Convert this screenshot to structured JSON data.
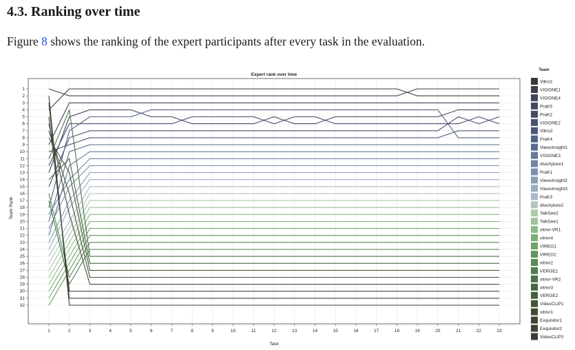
{
  "section": {
    "heading": "4.3.  Ranking over time",
    "paragraph_before": "Figure ",
    "figure_ref": "8",
    "paragraph_after": " shows the ranking of the expert participants after every task in the evaluation."
  },
  "chart_data": {
    "type": "line",
    "title": "Expert rank over time",
    "xlabel": "Task",
    "ylabel": "Team Rank",
    "x": [
      1,
      2,
      3,
      4,
      5,
      6,
      7,
      8,
      9,
      10,
      11,
      12,
      13,
      14,
      15,
      16,
      17,
      18,
      19,
      20,
      21,
      22,
      23
    ],
    "ylim": [
      1,
      32
    ],
    "y_inverted": true,
    "y_ticks": [
      1,
      2,
      3,
      4,
      5,
      6,
      7,
      8,
      9,
      10,
      11,
      12,
      13,
      14,
      15,
      16,
      17,
      18,
      19,
      20,
      21,
      22,
      23,
      24,
      25,
      26,
      27,
      28,
      29,
      30,
      31,
      32
    ],
    "grid": true,
    "legend": {
      "title": "Team",
      "placement": "right"
    },
    "series": [
      {
        "name": "Vibro1",
        "color": "#3a3a3a",
        "values": [
          4,
          1,
          1,
          1,
          1,
          1,
          1,
          1,
          1,
          1,
          1,
          1,
          1,
          1,
          1,
          1,
          1,
          1,
          2,
          2,
          2,
          2,
          2
        ]
      },
      {
        "name": "VISIONE1",
        "color": "#3d3f4f",
        "values": [
          1,
          2,
          2,
          2,
          2,
          2,
          2,
          2,
          2,
          2,
          2,
          2,
          2,
          2,
          2,
          2,
          2,
          2,
          1,
          1,
          1,
          1,
          1
        ]
      },
      {
        "name": "VISIONE4",
        "color": "#3f4356",
        "values": [
          9,
          3,
          3,
          3,
          3,
          3,
          3,
          3,
          3,
          3,
          3,
          3,
          3,
          3,
          3,
          3,
          3,
          3,
          3,
          3,
          3,
          3,
          3
        ]
      },
      {
        "name": "PraK5",
        "color": "#43475e",
        "values": [
          13,
          5,
          4,
          4,
          4,
          5,
          5,
          6,
          6,
          6,
          6,
          5,
          6,
          6,
          5,
          5,
          5,
          5,
          5,
          5,
          4,
          4,
          4
        ]
      },
      {
        "name": "PraK2",
        "color": "#454b66",
        "values": [
          12,
          6,
          6,
          6,
          6,
          6,
          6,
          5,
          5,
          5,
          5,
          6,
          5,
          5,
          6,
          6,
          6,
          6,
          6,
          6,
          6,
          5,
          6
        ]
      },
      {
        "name": "VISIONE2",
        "color": "#48516f",
        "values": [
          15,
          8,
          7,
          7,
          7,
          7,
          7,
          7,
          7,
          7,
          7,
          7,
          7,
          7,
          7,
          7,
          7,
          7,
          7,
          7,
          5,
          6,
          5
        ]
      },
      {
        "name": "Vibro2",
        "color": "#4c5878",
        "values": [
          10,
          9,
          8,
          8,
          8,
          8,
          8,
          8,
          8,
          8,
          8,
          8,
          8,
          8,
          8,
          8,
          8,
          8,
          8,
          8,
          7,
          7,
          7
        ]
      },
      {
        "name": "PraK4",
        "color": "#516182",
        "values": [
          18,
          7,
          5,
          5,
          5,
          4,
          4,
          4,
          4,
          4,
          4,
          4,
          4,
          4,
          4,
          4,
          4,
          4,
          4,
          4,
          8,
          8,
          8
        ]
      },
      {
        "name": "ViewsInsight1",
        "color": "#5a6c8d",
        "values": [
          20,
          10,
          9,
          9,
          9,
          9,
          9,
          9,
          9,
          9,
          9,
          9,
          9,
          9,
          9,
          9,
          9,
          9,
          9,
          9,
          9,
          9,
          9
        ]
      },
      {
        "name": "VISIONE3",
        "color": "#647898",
        "values": [
          22,
          12,
          10,
          10,
          10,
          10,
          10,
          10,
          10,
          10,
          10,
          10,
          10,
          10,
          10,
          10,
          10,
          10,
          10,
          10,
          10,
          10,
          10
        ]
      },
      {
        "name": "diveXplore1",
        "color": "#6f84a2",
        "values": [
          19,
          14,
          11,
          11,
          11,
          11,
          11,
          11,
          11,
          11,
          11,
          11,
          11,
          11,
          11,
          11,
          11,
          11,
          11,
          11,
          11,
          11,
          11
        ]
      },
      {
        "name": "PraK1",
        "color": "#7d91ad",
        "values": [
          21,
          15,
          12,
          12,
          12,
          12,
          12,
          12,
          12,
          12,
          12,
          12,
          12,
          12,
          12,
          12,
          12,
          12,
          12,
          12,
          12,
          12,
          12
        ]
      },
      {
        "name": "ViewsInsight2",
        "color": "#8c9eb7",
        "values": [
          23,
          17,
          13,
          13,
          13,
          13,
          13,
          13,
          13,
          13,
          13,
          13,
          13,
          13,
          13,
          13,
          13,
          13,
          13,
          13,
          13,
          13,
          13
        ]
      },
      {
        "name": "ViewsInsight3",
        "color": "#9bacc1",
        "values": [
          24,
          18,
          14,
          14,
          14,
          14,
          14,
          14,
          14,
          14,
          14,
          14,
          14,
          14,
          14,
          14,
          14,
          14,
          14,
          14,
          14,
          14,
          14
        ]
      },
      {
        "name": "PraK3",
        "color": "#a9b9c9",
        "values": [
          25,
          20,
          15,
          15,
          15,
          15,
          15,
          15,
          15,
          15,
          15,
          15,
          15,
          15,
          15,
          15,
          15,
          15,
          15,
          15,
          15,
          15,
          15
        ]
      },
      {
        "name": "diveXplore2",
        "color": "#b3c6c0",
        "values": [
          26,
          21,
          16,
          16,
          16,
          16,
          16,
          16,
          16,
          16,
          16,
          16,
          16,
          16,
          16,
          16,
          16,
          16,
          16,
          16,
          16,
          16,
          16
        ]
      },
      {
        "name": "TalkSee2",
        "color": "#aacaa8",
        "values": [
          27,
          22,
          17,
          17,
          17,
          17,
          17,
          17,
          17,
          17,
          17,
          17,
          17,
          17,
          17,
          17,
          17,
          17,
          17,
          17,
          17,
          17,
          17
        ]
      },
      {
        "name": "TalkSee1",
        "color": "#9dc39a",
        "values": [
          28,
          23,
          18,
          18,
          18,
          18,
          18,
          18,
          18,
          18,
          18,
          18,
          18,
          18,
          18,
          18,
          18,
          18,
          18,
          18,
          18,
          18,
          18
        ]
      },
      {
        "name": "vitrivr-VR1",
        "color": "#8dba89",
        "values": [
          29,
          24,
          19,
          19,
          19,
          19,
          19,
          19,
          19,
          19,
          19,
          19,
          19,
          19,
          19,
          19,
          19,
          19,
          19,
          19,
          19,
          19,
          19
        ]
      },
      {
        "name": "vitrivr4",
        "color": "#7cae79",
        "values": [
          30,
          25,
          20,
          20,
          20,
          20,
          20,
          20,
          20,
          20,
          20,
          20,
          20,
          20,
          20,
          20,
          20,
          20,
          20,
          20,
          20,
          20,
          20
        ]
      },
      {
        "name": "VIREO1",
        "color": "#6ea36c",
        "values": [
          31,
          26,
          21,
          21,
          21,
          21,
          21,
          21,
          21,
          21,
          21,
          21,
          21,
          21,
          21,
          21,
          21,
          21,
          21,
          21,
          21,
          21,
          21
        ]
      },
      {
        "name": "VIREO2",
        "color": "#629660",
        "values": [
          32,
          27,
          22,
          22,
          22,
          22,
          22,
          22,
          22,
          22,
          22,
          22,
          22,
          22,
          22,
          22,
          22,
          22,
          22,
          22,
          22,
          22,
          22
        ]
      },
      {
        "name": "vitrivr2",
        "color": "#588a55",
        "values": [
          16,
          28,
          23,
          23,
          23,
          23,
          23,
          23,
          23,
          23,
          23,
          23,
          23,
          23,
          23,
          23,
          23,
          23,
          23,
          23,
          23,
          23,
          23
        ]
      },
      {
        "name": "VERGE1",
        "color": "#507d4c",
        "values": [
          17,
          29,
          24,
          24,
          24,
          24,
          24,
          24,
          24,
          24,
          24,
          24,
          24,
          24,
          24,
          24,
          24,
          24,
          24,
          24,
          24,
          24,
          24
        ]
      },
      {
        "name": "vitrivr-VR2",
        "color": "#4a7145",
        "values": [
          11,
          4,
          25,
          25,
          25,
          25,
          25,
          25,
          25,
          25,
          25,
          25,
          25,
          25,
          25,
          25,
          25,
          25,
          25,
          25,
          25,
          25,
          25
        ]
      },
      {
        "name": "vitrivr3",
        "color": "#46663f",
        "values": [
          14,
          11,
          26,
          26,
          26,
          26,
          26,
          26,
          26,
          26,
          26,
          26,
          26,
          26,
          26,
          26,
          26,
          26,
          26,
          26,
          26,
          26,
          26
        ]
      },
      {
        "name": "VERGE2",
        "color": "#445c3a",
        "values": [
          8,
          13,
          27,
          27,
          27,
          27,
          27,
          27,
          27,
          27,
          27,
          27,
          27,
          27,
          27,
          27,
          27,
          27,
          27,
          27,
          27,
          27,
          27
        ]
      },
      {
        "name": "VideoCLIP1",
        "color": "#435337",
        "values": [
          7,
          16,
          28,
          28,
          28,
          28,
          28,
          28,
          28,
          28,
          28,
          28,
          28,
          28,
          28,
          28,
          28,
          28,
          28,
          28,
          28,
          28,
          28
        ]
      },
      {
        "name": "vitrivr1",
        "color": "#424b35",
        "values": [
          6,
          19,
          29,
          29,
          29,
          29,
          29,
          29,
          29,
          29,
          29,
          29,
          29,
          29,
          29,
          29,
          29,
          29,
          29,
          29,
          29,
          29,
          29
        ]
      },
      {
        "name": "Exquisitor1",
        "color": "#414434",
        "values": [
          5,
          30,
          30,
          30,
          30,
          30,
          30,
          30,
          30,
          30,
          30,
          30,
          30,
          30,
          30,
          30,
          30,
          30,
          30,
          30,
          30,
          30,
          30
        ]
      },
      {
        "name": "Exquisitor2",
        "color": "#403f34",
        "values": [
          3,
          31,
          31,
          31,
          31,
          31,
          31,
          31,
          31,
          31,
          31,
          31,
          31,
          31,
          31,
          31,
          31,
          31,
          31,
          31,
          31,
          31,
          31
        ]
      },
      {
        "name": "VideoCLIP2",
        "color": "#3e3b35",
        "values": [
          2,
          32,
          32,
          32,
          32,
          32,
          32,
          32,
          32,
          32,
          32,
          32,
          32,
          32,
          32,
          32,
          32,
          32,
          32,
          32,
          32,
          32,
          32
        ]
      }
    ]
  }
}
